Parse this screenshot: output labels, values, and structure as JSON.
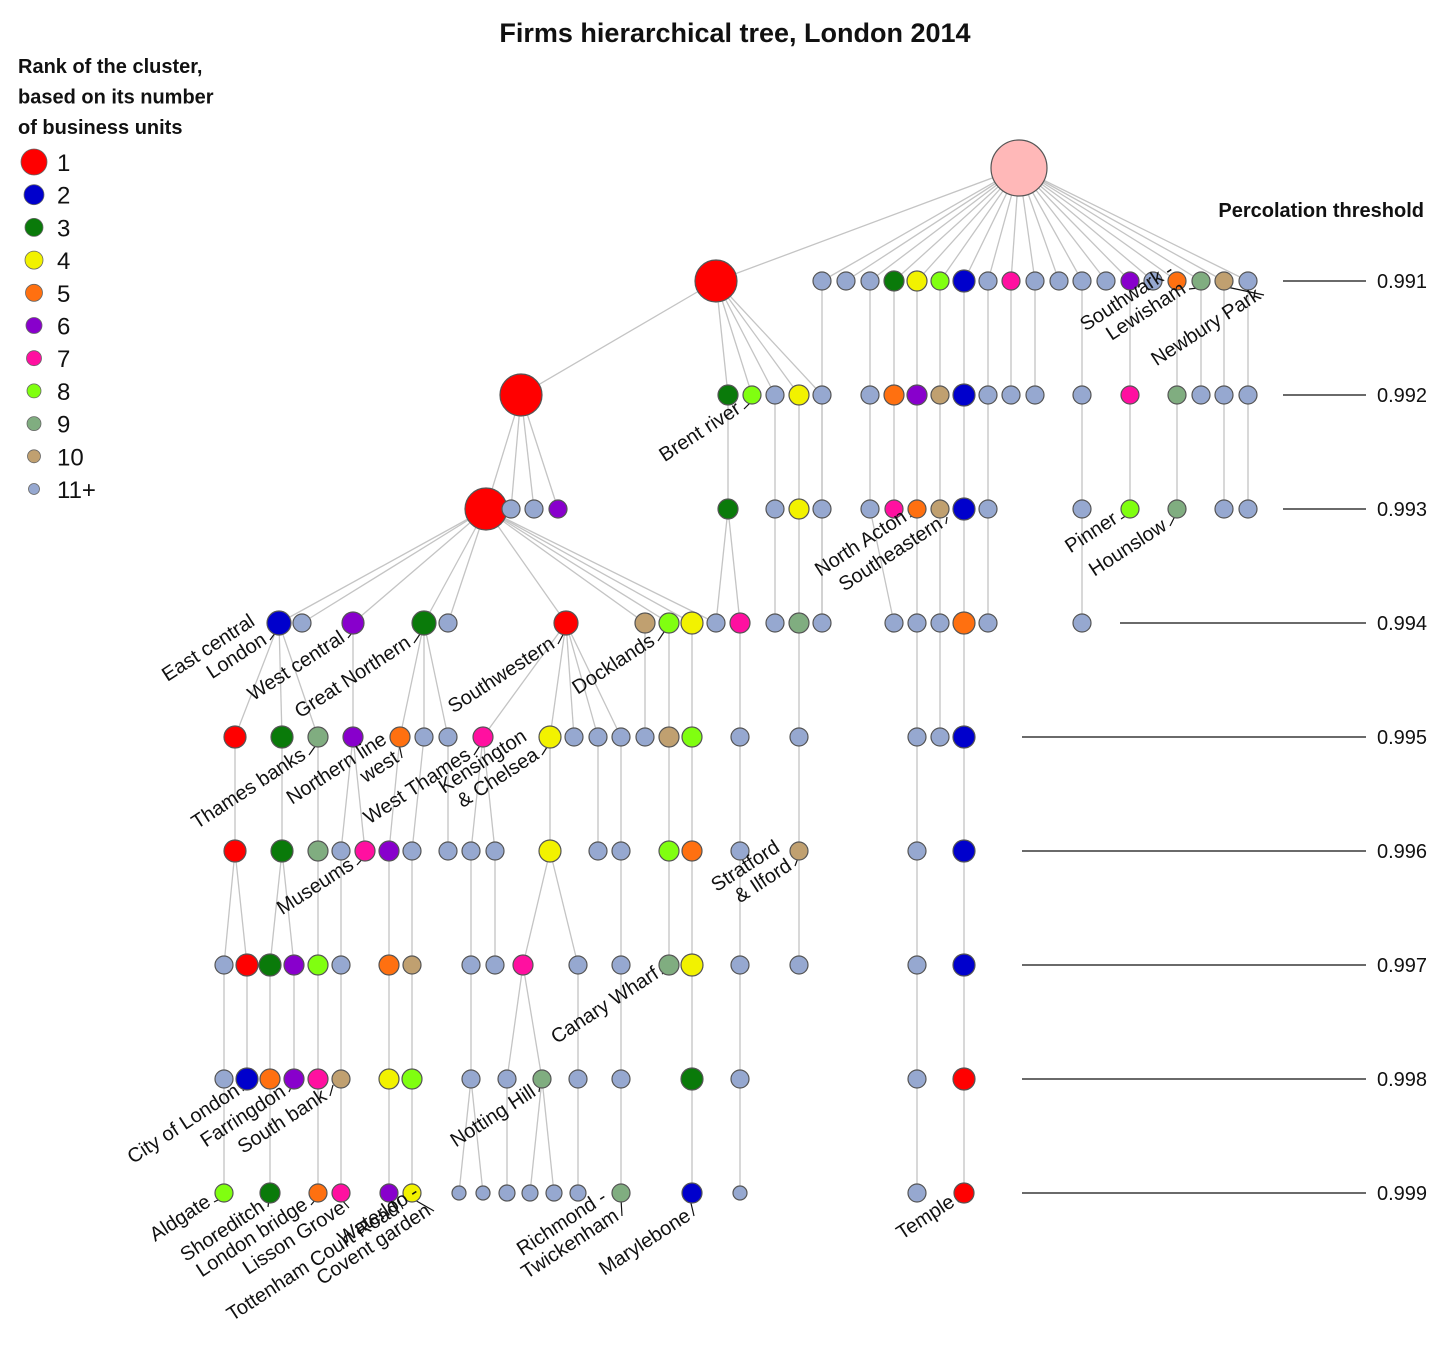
{
  "title": "Firms hierarchical tree, London 2014",
  "legend": {
    "title_lines": [
      "Rank of the cluster,",
      "based on its number",
      "of business units"
    ],
    "items": [
      {
        "label": "1",
        "color": "#ff0000"
      },
      {
        "label": "2",
        "color": "#0000cc"
      },
      {
        "label": "3",
        "color": "#0a7a0a"
      },
      {
        "label": "4",
        "color": "#f2f200"
      },
      {
        "label": "5",
        "color": "#ff7010"
      },
      {
        "label": "6",
        "color": "#8800cc"
      },
      {
        "label": "7",
        "color": "#ff10a0"
      },
      {
        "label": "8",
        "color": "#80ff10"
      },
      {
        "label": "9",
        "color": "#80ad80"
      },
      {
        "label": "10",
        "color": "#c0a070"
      },
      {
        "label": "11+",
        "color": "#96a8d0"
      }
    ]
  },
  "thresholds": {
    "title": "Percolation threshold",
    "levels": [
      "0.991",
      "0.992",
      "0.993",
      "0.994",
      "0.995",
      "0.996",
      "0.997",
      "0.998",
      "0.999"
    ]
  },
  "cluster_labels": [
    {
      "lines": [
        "East central",
        "London"
      ]
    },
    {
      "lines": [
        "West central"
      ]
    },
    {
      "lines": [
        "Great Northern"
      ]
    },
    {
      "lines": [
        "Southwestern"
      ]
    },
    {
      "lines": [
        "Docklands"
      ]
    },
    {
      "lines": [
        "Brent river"
      ]
    },
    {
      "lines": [
        "Southwark -",
        "Lewisham"
      ]
    },
    {
      "lines": [
        "Newbury Park"
      ]
    },
    {
      "lines": [
        "North Acton"
      ]
    },
    {
      "lines": [
        "Southeastern"
      ]
    },
    {
      "lines": [
        "Pinner"
      ]
    },
    {
      "lines": [
        "Hounslow"
      ]
    },
    {
      "lines": [
        "Thames banks"
      ]
    },
    {
      "lines": [
        "Northern line",
        "west"
      ]
    },
    {
      "lines": [
        "West Thames"
      ]
    },
    {
      "lines": [
        "Kensington",
        "& Chelsea"
      ]
    },
    {
      "lines": [
        "Museums"
      ]
    },
    {
      "lines": [
        "Stratford",
        "& Ilford"
      ]
    },
    {
      "lines": [
        "Canary Wharf"
      ]
    },
    {
      "lines": [
        "City of London"
      ]
    },
    {
      "lines": [
        "Farringdon"
      ]
    },
    {
      "lines": [
        "South bank"
      ]
    },
    {
      "lines": [
        "Notting Hill"
      ]
    },
    {
      "lines": [
        "Aldgate"
      ]
    },
    {
      "lines": [
        "Shoreditch"
      ]
    },
    {
      "lines": [
        "London bridge"
      ]
    },
    {
      "lines": [
        "Lisson Grove"
      ]
    },
    {
      "lines": [
        "Tottenham Court Road"
      ]
    },
    {
      "lines": [
        "Waterloo -",
        "Covent garden"
      ]
    },
    {
      "lines": [
        "Richmond -",
        "Twickenham"
      ]
    },
    {
      "lines": [
        "Marylebone"
      ]
    },
    {
      "lines": [
        "Temple"
      ]
    }
  ]
}
